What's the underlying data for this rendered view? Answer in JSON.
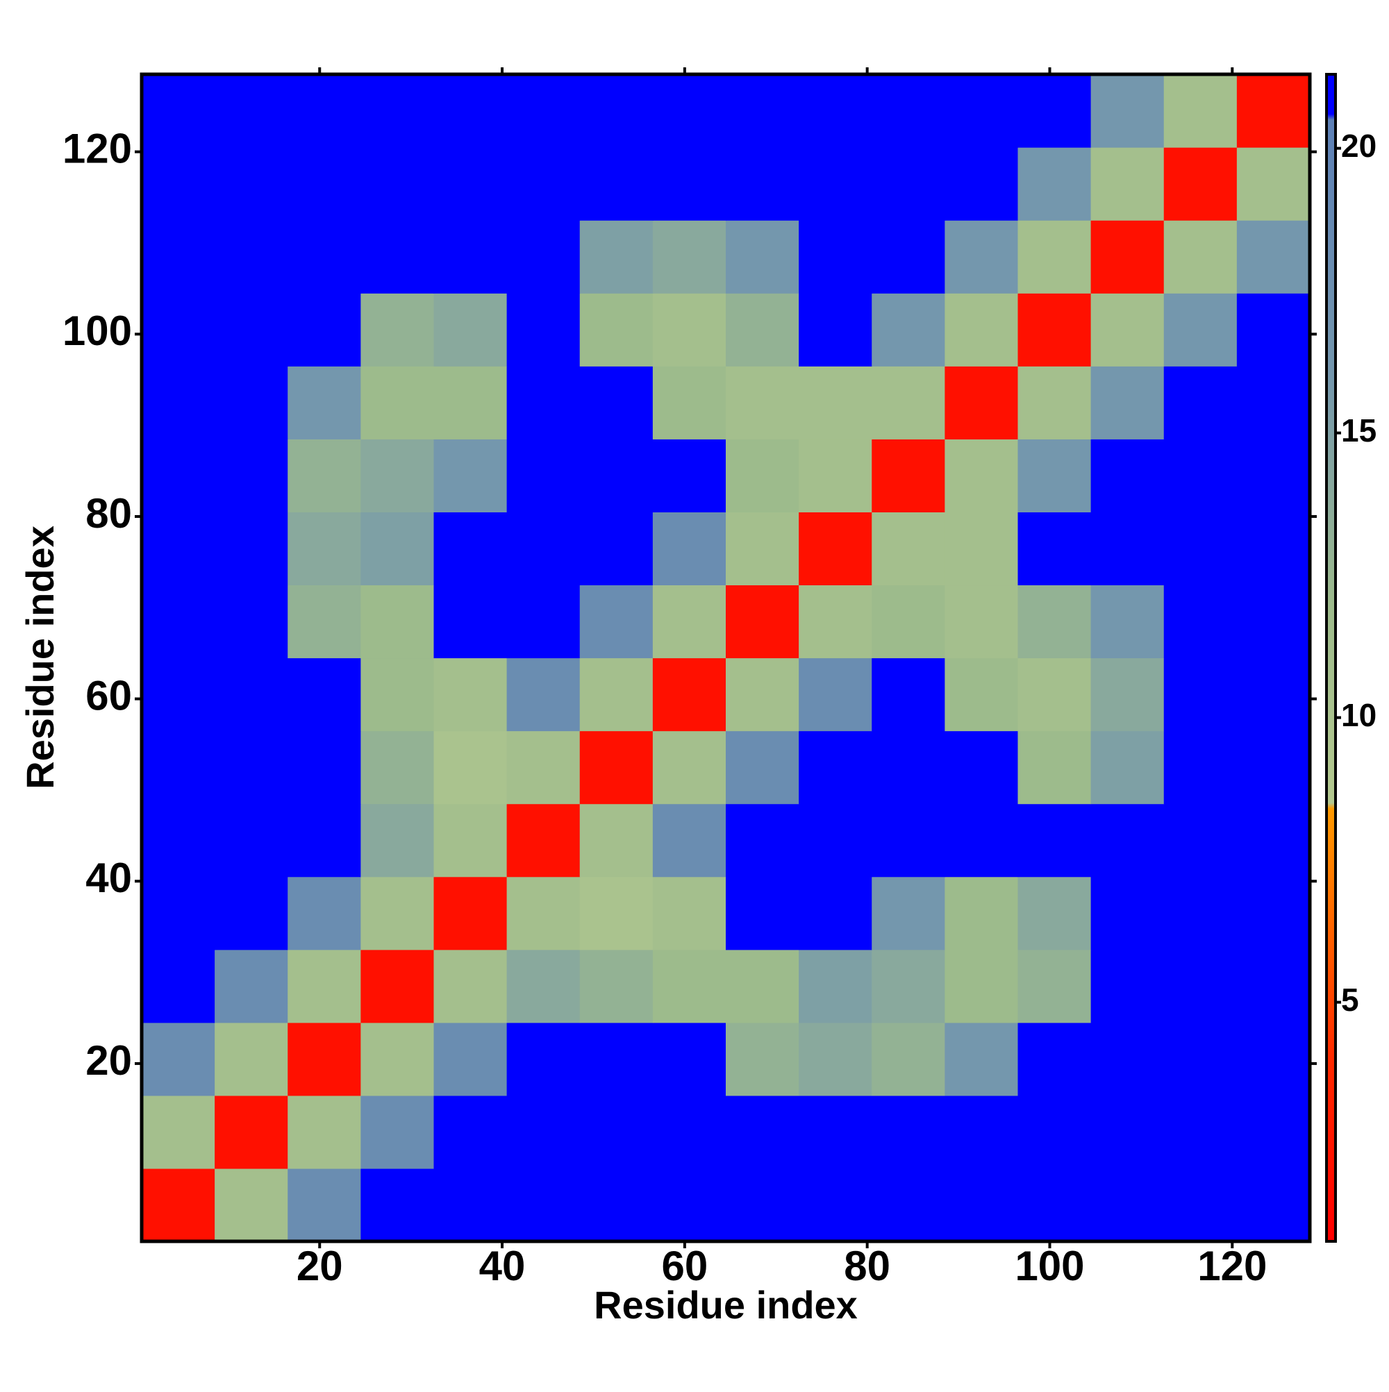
{
  "chart_data": {
    "type": "heatmap",
    "xlabel": "Residue index",
    "ylabel": "Residue index",
    "x_bins": [
      0.5,
      8.5,
      16.5,
      24.5,
      32.5,
      40.5,
      48.5,
      56.5,
      64.5,
      72.5,
      80.5,
      88.5,
      96.5,
      104.5,
      112.5,
      120.5,
      128.5
    ],
    "y_bins": [
      0.5,
      8.5,
      16.5,
      24.5,
      32.5,
      40.5,
      48.5,
      56.5,
      64.5,
      72.5,
      80.5,
      88.5,
      96.5,
      104.5,
      112.5,
      120.5,
      128.5
    ],
    "values": [
      [
        2,
        11,
        18,
        21,
        21,
        21,
        21,
        21,
        21,
        21,
        21,
        21,
        21,
        21,
        21,
        21
      ],
      [
        11,
        2,
        11,
        18,
        21,
        21,
        21,
        21,
        21,
        21,
        21,
        21,
        21,
        21,
        21,
        21
      ],
      [
        18,
        11,
        2,
        11,
        18,
        21,
        21,
        21,
        13,
        14,
        13,
        16,
        21,
        21,
        21,
        21
      ],
      [
        21,
        18,
        11,
        2,
        11,
        14,
        13,
        12,
        12,
        15,
        14,
        12,
        13,
        21,
        21,
        21
      ],
      [
        21,
        21,
        18,
        11,
        2,
        11,
        10,
        11,
        21,
        21,
        16,
        12,
        14,
        21,
        21,
        21
      ],
      [
        21,
        21,
        21,
        14,
        11,
        2,
        11,
        18,
        21,
        21,
        21,
        21,
        21,
        21,
        21,
        21
      ],
      [
        21,
        21,
        21,
        13,
        10,
        11,
        2,
        11,
        18,
        21,
        21,
        21,
        12,
        15,
        21,
        21
      ],
      [
        21,
        21,
        21,
        12,
        11,
        18,
        11,
        2,
        11,
        18,
        21,
        12,
        11,
        14,
        21,
        21
      ],
      [
        21,
        21,
        13,
        12,
        21,
        21,
        18,
        11,
        2,
        11,
        12,
        11,
        13,
        16,
        21,
        21
      ],
      [
        21,
        21,
        14,
        15,
        21,
        21,
        21,
        18,
        11,
        2,
        11,
        11,
        21,
        21,
        21,
        21
      ],
      [
        21,
        21,
        13,
        14,
        16,
        21,
        21,
        21,
        12,
        11,
        2,
        11,
        16,
        21,
        21,
        21
      ],
      [
        21,
        21,
        16,
        12,
        12,
        21,
        21,
        12,
        11,
        11,
        11,
        2,
        11,
        16,
        21,
        21
      ],
      [
        21,
        21,
        21,
        13,
        14,
        21,
        12,
        11,
        13,
        21,
        16,
        11,
        2,
        11,
        16,
        21
      ],
      [
        21,
        21,
        21,
        21,
        21,
        21,
        15,
        14,
        16,
        21,
        21,
        16,
        11,
        2,
        11,
        16
      ],
      [
        21,
        21,
        21,
        21,
        21,
        21,
        21,
        21,
        21,
        21,
        21,
        21,
        16,
        11,
        2,
        11
      ],
      [
        21,
        21,
        21,
        21,
        21,
        21,
        21,
        21,
        21,
        21,
        21,
        21,
        21,
        16,
        11,
        2
      ]
    ],
    "xlim": [
      0.5,
      128.5
    ],
    "ylim": [
      0.5,
      128.5
    ],
    "xticks": [
      20,
      40,
      60,
      80,
      100,
      120
    ],
    "yticks": [
      20,
      40,
      60,
      80,
      100,
      120
    ],
    "zlim": [
      0.8,
      21.3
    ],
    "zticks": [
      5,
      10,
      15,
      20
    ],
    "colorscale": [
      {
        "value": 0.8,
        "color": "#ff0000"
      },
      {
        "value": 4,
        "color": "#ff2a00"
      },
      {
        "value": 8.4,
        "color": "#ff9a00"
      },
      {
        "value": 8.5,
        "color": "#b4c98f"
      },
      {
        "value": 12,
        "color": "#9dbb8c"
      },
      {
        "value": 16,
        "color": "#7497ad"
      },
      {
        "value": 20.5,
        "color": "#5d80b6"
      },
      {
        "value": 20.6,
        "color": "#0000ff"
      },
      {
        "value": 21.3,
        "color": "#0000ff"
      }
    ]
  }
}
